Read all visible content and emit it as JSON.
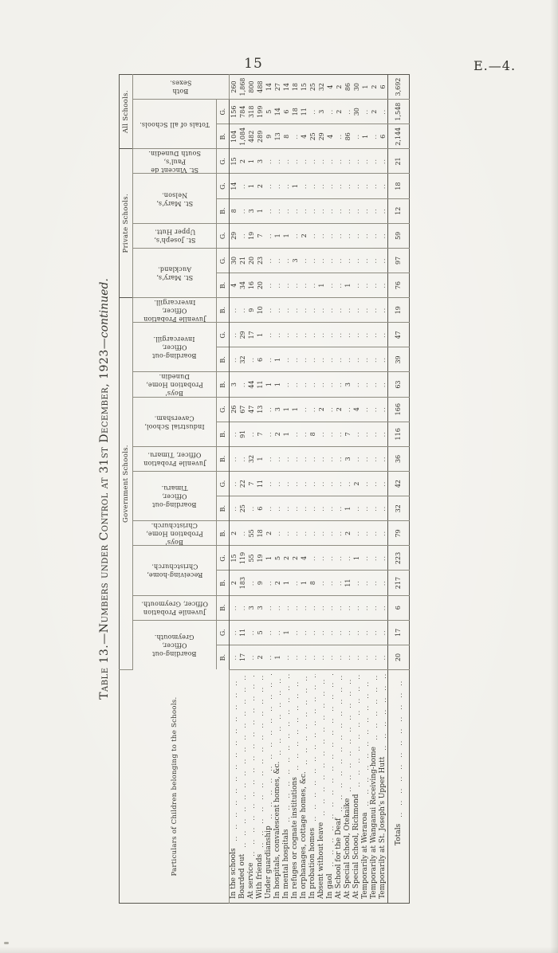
{
  "page": {
    "number": "15",
    "doc_code": "E.—4."
  },
  "table": {
    "title": {
      "main": "Table 13.—Numbers under Control at 31st December, 1923",
      "continued": "—continued."
    },
    "stub_header": "Particulars of Children belonging to the Schools.",
    "groups": [
      {
        "label": "Government Schools.",
        "span": 15
      },
      {
        "label": "Private Schools.",
        "span": 6
      },
      {
        "label": "All Schools.",
        "span": 3
      }
    ],
    "institutions": [
      {
        "name": "Boarding-out\nOfficer,\nGreymouth.",
        "subs": [
          "B.",
          "G."
        ]
      },
      {
        "name": "Juvenile Probation\nOfficer, Greymouth.",
        "subs": [
          "B."
        ]
      },
      {
        "name": "Receiving-home,\nChristchurch.",
        "subs": [
          "B.",
          "G."
        ]
      },
      {
        "name": "Boys'\nProbation Home,\nChristchurch.",
        "subs": [
          "B."
        ]
      },
      {
        "name": "Boarding-out\nOfficer,\nTimaru.",
        "subs": [
          "B.",
          "G."
        ]
      },
      {
        "name": "Juvenile Probation\nOfficer, Timaru.",
        "subs": [
          "B."
        ]
      },
      {
        "name": "Industrial School,\nCaversham.",
        "subs": [
          "B.",
          "G."
        ]
      },
      {
        "name": "Boys'\nProbation Home,\nDunedin.",
        "subs": [
          "B."
        ]
      },
      {
        "name": "Boarding-out\nOfficer,\nInvercargill.",
        "subs": [
          "B.",
          "G."
        ]
      },
      {
        "name": "Juvenile Probation\nOfficer,\nInvercargill.",
        "subs": [
          "B."
        ]
      },
      {
        "name": "St. Mary's,\nAuckland.",
        "subs": [
          "B.",
          "G."
        ]
      },
      {
        "name": "St. Joseph's,\nUpper Hutt.",
        "subs": [
          "G."
        ]
      },
      {
        "name": "St. Mary's,\nNelson.",
        "subs": [
          "B.",
          "G."
        ]
      },
      {
        "name": "St. Vincent de\nPaul's,\nSouth Dunedin.",
        "subs": [
          "G."
        ]
      },
      {
        "name": "Totals of all Schools.",
        "subs": [
          "B.",
          "G."
        ]
      },
      {
        "name": "Both\nSexes.",
        "subs": []
      }
    ],
    "rows": [
      {
        "label": "In the schools",
        "values": [
          "",
          "",
          "",
          "2",
          "15",
          "2",
          "",
          "",
          "",
          "",
          "26",
          "3",
          "",
          "",
          "",
          "4",
          "30",
          "29",
          "8",
          "14",
          "15",
          "104",
          "156",
          "260"
        ]
      },
      {
        "label": "Boarded out",
        "values": [
          "17",
          "11",
          "",
          "183",
          "119",
          "",
          "25",
          "22",
          "",
          "91",
          "67",
          "",
          "32",
          "29",
          "",
          "34",
          "21",
          "",
          "",
          "",
          "2",
          "1,084",
          "784",
          "1,868"
        ]
      },
      {
        "label": "At service",
        "values": [
          "",
          "",
          "3",
          "",
          "55",
          "55",
          "",
          "7",
          "32",
          "",
          "47",
          "44",
          "",
          "17",
          "9",
          "16",
          "20",
          "19",
          "3",
          "1",
          "1",
          "482",
          "318",
          "800"
        ]
      },
      {
        "label": "With friends",
        "values": [
          "2",
          "5",
          "3",
          "9",
          "19",
          "18",
          "6",
          "11",
          "1",
          "7",
          "13",
          "11",
          "6",
          "1",
          "10",
          "20",
          "23",
          "7",
          "1",
          "2",
          "3",
          "289",
          "199",
          "488"
        ]
      },
      {
        "label": "Under guardianship",
        "values": [
          "",
          "",
          "",
          "",
          "1",
          "2",
          "",
          "",
          "",
          "",
          "",
          "1",
          "",
          "",
          "",
          "",
          "",
          "",
          "",
          "",
          "",
          "9",
          "5",
          "14"
        ]
      },
      {
        "label": "In hospitals, convalescent homes, &c.",
        "values": [
          "1",
          "",
          "",
          "2",
          "5",
          "",
          "",
          "",
          "",
          "2",
          "3",
          "1",
          "1",
          "",
          "",
          "",
          "",
          "1",
          "",
          "",
          "",
          "13",
          "14",
          "27"
        ]
      },
      {
        "label": "In mental hospitals",
        "values": [
          "",
          "1",
          "",
          "1",
          "2",
          "",
          "",
          "",
          "",
          "1",
          "1",
          "",
          "",
          "",
          "",
          "",
          "",
          "1",
          "",
          "",
          "",
          "8",
          "6",
          "14"
        ]
      },
      {
        "label": "In refuges or cognate institutions",
        "values": [
          "",
          "",
          "",
          "",
          "2",
          "",
          "",
          "",
          "",
          "",
          "1",
          "",
          "",
          "",
          "",
          "",
          "3",
          "",
          "",
          "1",
          "",
          "",
          "18",
          "18"
        ]
      },
      {
        "label": "In orphanages, cottage homes, &c.",
        "values": [
          "",
          "",
          "",
          "1",
          "4",
          "",
          "",
          "",
          "",
          "",
          "",
          "",
          "",
          "",
          "",
          "",
          "",
          "2",
          "",
          "",
          "",
          "4",
          "11",
          "15"
        ]
      },
      {
        "label": "In probation homes",
        "values": [
          "",
          "",
          "",
          "8",
          "",
          "",
          "",
          "",
          "",
          "8",
          "",
          "",
          "",
          "",
          "",
          "",
          "",
          "",
          "",
          "",
          "",
          "25",
          "",
          "25"
        ]
      },
      {
        "label": "Absent without leave",
        "values": [
          "",
          "",
          "",
          "",
          "",
          "",
          "",
          "",
          "",
          "",
          "2",
          "",
          "",
          "",
          "",
          "1",
          "",
          "",
          "",
          "",
          "",
          "29",
          "3",
          "32"
        ]
      },
      {
        "label": "In gaol",
        "values": [
          "",
          "",
          "",
          "",
          "",
          "",
          "",
          "",
          "",
          "",
          "",
          "",
          "",
          "",
          "",
          "",
          "",
          "",
          "",
          "",
          "",
          "4",
          "",
          "4"
        ]
      },
      {
        "label": "At School for the Deaf",
        "values": [
          "",
          "",
          "",
          "",
          "",
          "",
          "",
          "",
          "",
          "",
          "2",
          "",
          "",
          "",
          "",
          "",
          "",
          "",
          "",
          "",
          "",
          "",
          "2",
          "2"
        ]
      },
      {
        "label": "At Special School, Otekaike",
        "values": [
          "",
          "",
          "",
          "11",
          "",
          "2",
          "1",
          "",
          "3",
          "7",
          "",
          "3",
          "",
          "",
          "",
          "1",
          "",
          "",
          "",
          "",
          "",
          "86",
          "",
          "86"
        ]
      },
      {
        "label": "At Special School, Richmond",
        "values": [
          "",
          "",
          "",
          "",
          "1",
          "",
          "",
          "2",
          "",
          "",
          "4",
          "",
          "",
          "",
          "",
          "",
          "",
          "",
          "",
          "",
          "",
          "",
          "30",
          "30"
        ]
      },
      {
        "label": "Temporarily at Weraroa",
        "values": [
          "",
          "",
          "",
          "",
          "",
          "",
          "",
          "",
          "",
          "",
          "",
          "",
          "",
          "",
          "",
          "",
          "",
          "",
          "",
          "",
          "",
          "1",
          "",
          "1"
        ]
      },
      {
        "label": "Temporarily at Wanganui Receiving-home",
        "values": [
          "",
          "",
          "",
          "",
          "",
          "",
          "",
          "",
          "",
          "",
          "",
          "",
          "",
          "",
          "",
          "",
          "",
          "",
          "",
          "",
          "",
          "",
          "2",
          "2"
        ]
      },
      {
        "label": "Temporarily at St. Joseph's Upper Hutt",
        "values": [
          "",
          "",
          "",
          "",
          "",
          "",
          "",
          "",
          "",
          "",
          "",
          "",
          "",
          "",
          "",
          "",
          "",
          "",
          "",
          "",
          "",
          "6",
          "",
          "6"
        ]
      }
    ],
    "totals_row": {
      "label": "Totals",
      "values": [
        "20",
        "17",
        "6",
        "217",
        "223",
        "79",
        "32",
        "42",
        "36",
        "116",
        "166",
        "63",
        "39",
        "47",
        "19",
        "76",
        "97",
        "59",
        "12",
        "18",
        "21",
        "2,144",
        "1,548",
        "3,692"
      ]
    }
  }
}
